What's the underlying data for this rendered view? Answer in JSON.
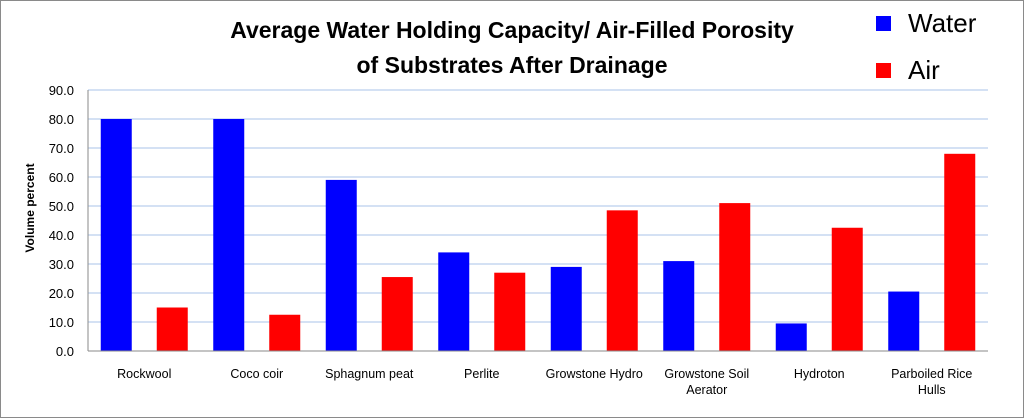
{
  "chart_data": {
    "type": "bar",
    "title": [
      "Average Water Holding Capacity/ Air-Filled Porosity",
      "of Substrates After Drainage"
    ],
    "xlabel": "",
    "ylabel": "Volume  percent",
    "ylim": [
      0,
      90
    ],
    "yticks": [
      "0.0",
      "10.0",
      "20.0",
      "30.0",
      "40.0",
      "50.0",
      "60.0",
      "70.0",
      "80.0",
      "90.0"
    ],
    "grid": true,
    "legend_position": "top-right",
    "categories": [
      [
        "Rockwool"
      ],
      [
        "Coco coir"
      ],
      [
        "Sphagnum peat"
      ],
      [
        "Perlite"
      ],
      [
        "Growstone Hydro"
      ],
      [
        "Growstone Soil",
        "Aerator"
      ],
      [
        "Hydroton"
      ],
      [
        "Parboiled Rice",
        "Hulls"
      ]
    ],
    "series": [
      {
        "name": "Water",
        "color": "#0000ff",
        "values": [
          80,
          80,
          59,
          34,
          29,
          31,
          9.5,
          20.5
        ]
      },
      {
        "name": "Air",
        "color": "#ff0000",
        "values": [
          15,
          12.5,
          25.5,
          27,
          48.5,
          51,
          42.5,
          68
        ]
      }
    ]
  }
}
